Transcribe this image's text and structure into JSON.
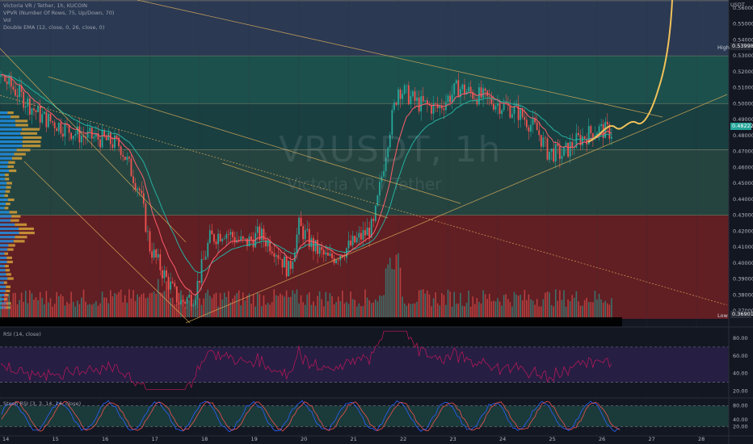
{
  "legend": {
    "line1": "Victoria VR / Tether, 1h, KUCOIN",
    "line2": "VPVR (Number Of Rows, 75, Up/Down, 70)",
    "line3": "Vol",
    "line4": "Double EMA (12, close, 0, 26, close, 0)"
  },
  "watermark": {
    "symbol": "VRUSDT, 1h",
    "name": "Victoria VR / Tether"
  },
  "price_axis": {
    "currency": "USDT",
    "ticks": [
      "0.56000",
      "0.55000",
      "0.54000",
      "0.53000",
      "0.52000",
      "0.51000",
      "0.50000",
      "0.49000",
      "0.48000",
      "0.47000",
      "0.46000",
      "0.45000",
      "0.44000",
      "0.43000",
      "0.42000",
      "0.41000",
      "0.40000",
      "0.39000",
      "0.38000",
      "0.37000"
    ],
    "high_label": "High",
    "high_value": "0.53998",
    "low_label": "Low",
    "low_value": "0.36901",
    "last_price": "0.48222"
  },
  "time_axis": [
    "14",
    "15",
    "16",
    "17",
    "18",
    "19",
    "20",
    "21",
    "22",
    "23",
    "24",
    "25",
    "26",
    "27",
    "28"
  ],
  "rsi": {
    "label": "RSI (14, close)",
    "ticks": [
      "80.00",
      "60.00",
      "40.00",
      "20.00"
    ]
  },
  "stoch": {
    "label": "Stoch RSI (3, 3, 14, 14, close)",
    "ticks": [
      "80.00",
      "40.00",
      "20.00"
    ]
  },
  "colors": {
    "background": "#131722",
    "zone_top": "#30405c",
    "zone_upper_teal": "#1e5a55",
    "zone_mid_green": "#2b5048",
    "zone_lower_red": "#6a1f24",
    "up": "#26a69a",
    "down": "#ef5350",
    "ema_fast": "#ff5d6a",
    "ema_slow": "#26b0a0",
    "trendline": "#e0b05a",
    "projection": "#f0c25a",
    "rsi_line": "#c2185b",
    "rsi_band": "#2a1f47"
  },
  "chart_data": {
    "type": "candlestick",
    "symbol": "VRUSDT",
    "interval": "1h",
    "x_categories": [
      "14",
      "15",
      "16",
      "17",
      "18",
      "19",
      "20",
      "21",
      "22",
      "23",
      "24",
      "25",
      "26",
      "27",
      "28"
    ],
    "ylim": [
      0.365,
      0.565
    ],
    "high": 0.53998,
    "low": 0.36901,
    "last": 0.48222,
    "price_path": [
      {
        "day": 14.0,
        "close": 0.517
      },
      {
        "day": 14.4,
        "close": 0.505
      },
      {
        "day": 14.8,
        "close": 0.492
      },
      {
        "day": 15.2,
        "close": 0.486
      },
      {
        "day": 15.6,
        "close": 0.48
      },
      {
        "day": 16.0,
        "close": 0.478
      },
      {
        "day": 16.4,
        "close": 0.474
      },
      {
        "day": 16.8,
        "close": 0.445
      },
      {
        "day": 17.0,
        "close": 0.41
      },
      {
        "day": 17.3,
        "close": 0.392
      },
      {
        "day": 17.6,
        "close": 0.375
      },
      {
        "day": 17.9,
        "close": 0.38
      },
      {
        "day": 18.2,
        "close": 0.415
      },
      {
        "day": 18.5,
        "close": 0.42
      },
      {
        "day": 18.9,
        "close": 0.412
      },
      {
        "day": 19.2,
        "close": 0.418
      },
      {
        "day": 19.5,
        "close": 0.41
      },
      {
        "day": 19.8,
        "close": 0.395
      },
      {
        "day": 20.0,
        "close": 0.423
      },
      {
        "day": 20.3,
        "close": 0.41
      },
      {
        "day": 20.6,
        "close": 0.402
      },
      {
        "day": 21.0,
        "close": 0.41
      },
      {
        "day": 21.5,
        "close": 0.423
      },
      {
        "day": 21.8,
        "close": 0.48
      },
      {
        "day": 22.0,
        "close": 0.51
      },
      {
        "day": 22.4,
        "close": 0.5
      },
      {
        "day": 22.8,
        "close": 0.497
      },
      {
        "day": 23.2,
        "close": 0.51
      },
      {
        "day": 23.6,
        "close": 0.505
      },
      {
        "day": 24.0,
        "close": 0.5
      },
      {
        "day": 24.4,
        "close": 0.495
      },
      {
        "day": 24.8,
        "close": 0.483
      },
      {
        "day": 25.0,
        "close": 0.47
      },
      {
        "day": 25.3,
        "close": 0.468
      },
      {
        "day": 25.6,
        "close": 0.477
      },
      {
        "day": 26.0,
        "close": 0.484
      },
      {
        "day": 26.3,
        "close": 0.482
      }
    ],
    "zones": [
      {
        "from": 0.53,
        "to": 0.5,
        "label": "resistance"
      },
      {
        "from": 0.5,
        "to": 0.471,
        "label": "upper"
      },
      {
        "from": 0.471,
        "to": 0.43,
        "label": "support"
      },
      {
        "from": 0.43,
        "to": 0.369,
        "label": "demand"
      }
    ],
    "rsi_levels": [
      70,
      30
    ],
    "stoch_levels": [
      80,
      20
    ]
  }
}
